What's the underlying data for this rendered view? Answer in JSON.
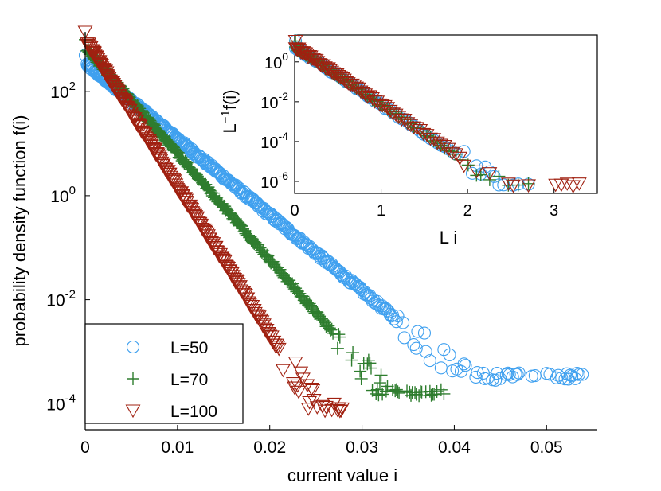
{
  "chart_data": [
    {
      "type": "scatter",
      "role": "main",
      "xlabel": "current value i",
      "ylabel": "probability density function f(i)",
      "xlim": [
        0,
        0.0555
      ],
      "yscale": "log",
      "ylim_log10": [
        -4.5,
        3.15
      ],
      "x_tick_labels": [
        "0",
        "0.01",
        "0.02",
        "0.03",
        "0.04",
        "0.05"
      ],
      "x_tick_values": [
        0,
        0.01,
        0.02,
        0.03,
        0.04,
        0.05
      ],
      "y_tick_values_log10": [
        2,
        0,
        -2,
        -4
      ],
      "y_tick_mantissa": "10",
      "y_tick_exponents": [
        "2",
        "0",
        "-2",
        "-4"
      ],
      "legend": {
        "placement": "bottom-left",
        "entries": [
          "L=50",
          "L=70",
          "L=100"
        ]
      },
      "series": [
        {
          "name": "L=50",
          "marker": "circle",
          "color": "#3fa0ef",
          "f0_log10": 2.55,
          "decay_log10_per_unit": 146,
          "noise_floor_log10": -3.55,
          "x_end": 0.0545
        },
        {
          "name": "L=70",
          "marker": "plus",
          "color": "#2e7d2e",
          "f0_log10": 2.85,
          "decay_log10_per_unit": 204,
          "noise_floor_log10": -3.85,
          "x_end": 0.039
        },
        {
          "name": "L=100",
          "marker": "triangle-down",
          "color": "#a02010",
          "f0_log10": 3.0,
          "decay_log10_per_unit": 284,
          "noise_floor_log10": -4.15,
          "x_end": 0.028
        }
      ]
    },
    {
      "type": "scatter",
      "role": "inset",
      "xlabel": "L i",
      "ylabel_base": "L",
      "ylabel_sup": "−1",
      "ylabel_rest": "f(i)",
      "xlim": [
        0,
        3.5
      ],
      "yscale": "log",
      "ylim_log10": [
        -6.6,
        1.35
      ],
      "x_tick_labels": [
        "0",
        "1",
        "2",
        "3"
      ],
      "x_tick_values": [
        0,
        1,
        2,
        3
      ],
      "y_tick_values_log10": [
        0,
        -2,
        -4,
        -6
      ],
      "y_tick_mantissa": "10",
      "y_tick_exponents": [
        "0",
        "-2",
        "-4",
        "-6"
      ],
      "collapsed_decay_log10_per_unit": 2.9,
      "collapsed_f0_log10": 0.75
    }
  ]
}
